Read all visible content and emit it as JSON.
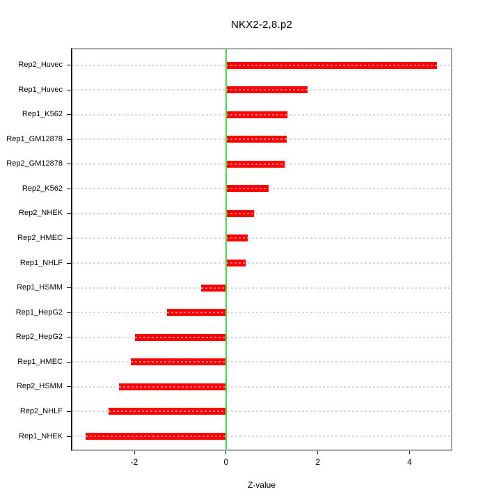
{
  "chart_data": {
    "type": "bar",
    "orientation": "horizontal",
    "title": "NKX2-2,8.p2",
    "xlabel": "Z-value",
    "ylabel": "",
    "categories": [
      "Rep2_Huvec",
      "Rep1_Huvec",
      "Rep1_K562",
      "Rep1_GM12878",
      "Rep2_GM12878",
      "Rep2_K562",
      "Rep2_NHEK",
      "Rep2_HMEC",
      "Rep1_NHLF",
      "Rep1_HSMM",
      "Rep1_HepG2",
      "Rep2_HepG2",
      "Rep1_HMEC",
      "Rep2_HSMM",
      "Rep2_NHLF",
      "Rep1_NHEK"
    ],
    "values": [
      4.59,
      1.77,
      1.33,
      1.32,
      1.27,
      0.92,
      0.61,
      0.47,
      0.42,
      -0.55,
      -1.29,
      -1.98,
      -2.08,
      -2.33,
      -2.56,
      -3.06
    ],
    "xlim": [
      -3.35,
      4.9
    ],
    "x_ticks": [
      -2,
      0,
      2,
      4
    ],
    "x_tick_labels": [
      "-2",
      "0",
      "2",
      "4"
    ],
    "grid": true,
    "zero_reference_line": 0,
    "legend": "none",
    "colors": {
      "bar": "#ff0000",
      "bar_dash": "#ff8080",
      "grid_line": "#d9d9d9",
      "zero_line": "#3be83b",
      "box_border": "#a8a8a8",
      "axis_line": "#1c1c1c",
      "text": "#000000"
    }
  }
}
